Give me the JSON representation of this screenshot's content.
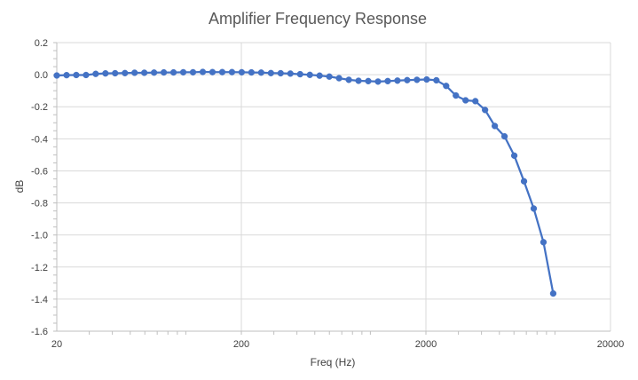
{
  "chart_data": {
    "type": "line",
    "title": "Amplifier Frequency Response",
    "xlabel": "Freq (Hz)",
    "ylabel": "dB",
    "xscale": "log",
    "xlim": [
      20,
      20000
    ],
    "ylim": [
      -1.6,
      0.2
    ],
    "x_ticks": [
      "20",
      "200",
      "2000",
      "20000"
    ],
    "y_ticks": [
      "0.2",
      "0.0",
      "-0.2",
      "-0.4",
      "-0.6",
      "-0.8",
      "-1.0",
      "-1.2",
      "-1.4",
      "-1.6"
    ],
    "grid": true,
    "legend": "none",
    "colors": {
      "series": "#4472C4",
      "grid": "#D9D9D9",
      "axis": "#BFBFBF"
    },
    "series": [
      {
        "points": [
          [
            20,
            -0.005
          ],
          [
            22.6,
            -0.003
          ],
          [
            25.5,
            -0.002
          ],
          [
            28.8,
            -0.002
          ],
          [
            32.5,
            0.005
          ],
          [
            36.7,
            0.008
          ],
          [
            41.4,
            0.009
          ],
          [
            46.8,
            0.01
          ],
          [
            52.8,
            0.012
          ],
          [
            59.6,
            0.012
          ],
          [
            67.3,
            0.013
          ],
          [
            76.0,
            0.014
          ],
          [
            85.8,
            0.014
          ],
          [
            96.9,
            0.015
          ],
          [
            109.4,
            0.015
          ],
          [
            123.6,
            0.017
          ],
          [
            139.5,
            0.016
          ],
          [
            157.6,
            0.016
          ],
          [
            177.9,
            0.016
          ],
          [
            200.9,
            0.015
          ],
          [
            226.8,
            0.014
          ],
          [
            256.1,
            0.013
          ],
          [
            289.2,
            0.01
          ],
          [
            326.5,
            0.009
          ],
          [
            368.7,
            0.007
          ],
          [
            416.3,
            0.003
          ],
          [
            470.1,
            -0.001
          ],
          [
            530.8,
            -0.006
          ],
          [
            599.3,
            -0.012
          ],
          [
            676.7,
            -0.022
          ],
          [
            764.1,
            -0.032
          ],
          [
            862.7,
            -0.038
          ],
          [
            974.2,
            -0.04
          ],
          [
            1100,
            -0.043
          ],
          [
            1242,
            -0.04
          ],
          [
            1402,
            -0.037
          ],
          [
            1583,
            -0.034
          ],
          [
            1788,
            -0.032
          ],
          [
            2019,
            -0.03
          ],
          [
            2279,
            -0.035
          ],
          [
            2574,
            -0.07
          ],
          [
            2906,
            -0.13
          ],
          [
            3281,
            -0.16
          ],
          [
            3705,
            -0.165
          ],
          [
            4183,
            -0.22
          ],
          [
            4723,
            -0.32
          ],
          [
            5333,
            -0.385
          ],
          [
            6022,
            -0.505
          ],
          [
            6799,
            -0.665
          ],
          [
            7677,
            -0.835
          ],
          [
            8669,
            -1.045
          ],
          [
            9788,
            -1.365
          ]
        ]
      }
    ]
  }
}
